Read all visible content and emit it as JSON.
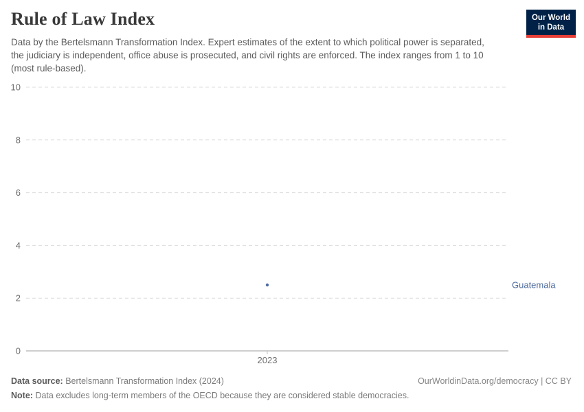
{
  "header": {
    "title": "Rule of Law Index",
    "subtitle": "Data by the Bertelsmann Transformation Index. Expert estimates of the extent to which political power is separated, the judiciary is independent, office abuse is prosecuted, and civil rights are enforced. The index ranges from 1 to 10 (most rule-based).",
    "logo": {
      "line1": "Our World",
      "line2": "in Data",
      "bg_color": "#002147",
      "accent_color": "#e63e36"
    }
  },
  "chart_data": {
    "type": "scatter",
    "title": "Rule of Law Index",
    "xlabel": "",
    "ylabel": "",
    "x_ticks": [
      "2023"
    ],
    "y_ticks": [
      0,
      2,
      4,
      6,
      8,
      10
    ],
    "ylim": [
      0,
      10
    ],
    "grid": "horizontal-dashed",
    "legend_position": "right-of-point",
    "series": [
      {
        "name": "Guatemala",
        "color": "#4c6a9c",
        "x": [
          2023
        ],
        "values": [
          2.5
        ]
      }
    ],
    "colors": {
      "gridline": "#dcdcdc",
      "axis_line": "#9e9e9e",
      "tick_mark": "#c2c2c2",
      "tick_text": "#6e6e6e"
    }
  },
  "footer": {
    "data_source_label": "Data source:",
    "data_source_value": "Bertelsmann Transformation Index (2024)",
    "attribution": "OurWorldinData.org/democracy | CC BY",
    "note_label": "Note:",
    "note_value": "Data excludes long-term members of the OECD because they are considered stable democracies."
  }
}
